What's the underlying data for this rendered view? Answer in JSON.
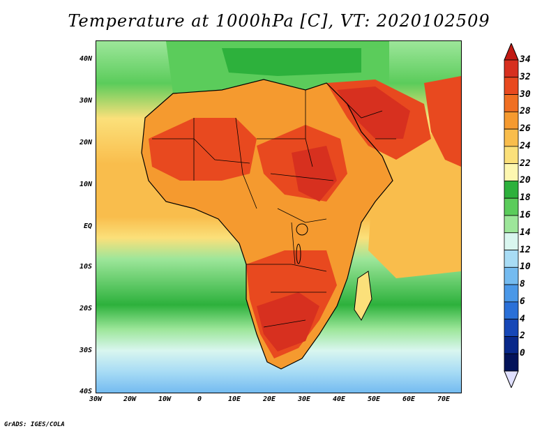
{
  "title": "Temperature at 1000hPa [C], VT: 2020102509",
  "credit": "GrADS: IGES/COLA",
  "axes": {
    "lat_ticks": [
      "40N",
      "30N",
      "20N",
      "10N",
      "EQ",
      "10S",
      "20S",
      "30S",
      "40S"
    ],
    "lon_ticks": [
      "30W",
      "20W",
      "10W",
      "0",
      "10E",
      "20E",
      "30E",
      "40E",
      "50E",
      "60E",
      "70E"
    ]
  },
  "colorbar": {
    "labels": [
      "34",
      "32",
      "30",
      "28",
      "26",
      "24",
      "22",
      "20",
      "18",
      "16",
      "14",
      "12",
      "10",
      "8",
      "6",
      "4",
      "2",
      "0"
    ],
    "colors": [
      "#d7301f",
      "#e8491f",
      "#f06f22",
      "#f59a2f",
      "#f9bd4c",
      "#fbe07a",
      "#fdf7b0",
      "#2db13c",
      "#5bcc5b",
      "#9de69a",
      "#d9f6ef",
      "#a8dcf5",
      "#74bbf0",
      "#4a98e8",
      "#2a70d8",
      "#1647b7",
      "#08288a",
      "#03135a"
    ],
    "top_arrow_color": "#c21a14",
    "bottom_arrow_color": "#e0e0ff"
  },
  "palette": {
    "ocean_cool": "#9de69a",
    "ocean_warm": "#f9bd4c",
    "ocean_mid": "#fbe07a",
    "cold_south": "#74bbf0",
    "hot_land": "#e8491f",
    "warm_land": "#f59a2f",
    "med_green": "#2db13c"
  }
}
